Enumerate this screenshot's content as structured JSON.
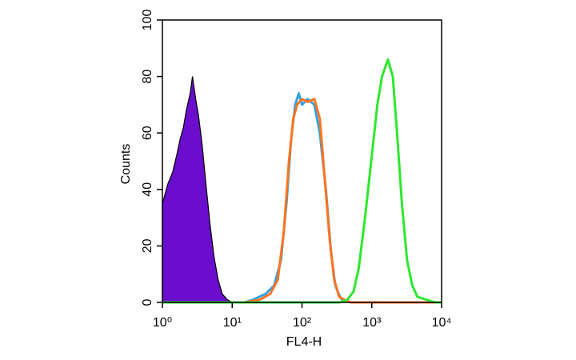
{
  "chart_data": {
    "type": "histogram-overlay",
    "xlabel": "FL4-H",
    "ylabel": "Counts",
    "xscale": "log",
    "xlim": [
      1,
      10000
    ],
    "ylim": [
      0,
      100
    ],
    "xticks": [
      {
        "value": 1,
        "label": "10⁰"
      },
      {
        "value": 10,
        "label": "10¹"
      },
      {
        "value": 100,
        "label": "10²"
      },
      {
        "value": 1000,
        "label": "10³"
      },
      {
        "value": 10000,
        "label": "10⁴"
      }
    ],
    "yticks": [
      0,
      20,
      40,
      60,
      80,
      100
    ],
    "series": [
      {
        "color": "#000000",
        "fill": "#6a0dcc",
        "x": [
          1,
          1.2,
          1.4,
          1.6,
          1.8,
          2.0,
          2.2,
          2.5,
          2.7,
          3.0,
          3.3,
          3.7,
          4.2,
          4.8,
          5.5,
          6.3,
          7.2,
          8.5,
          10
        ],
        "values": [
          35,
          42,
          46,
          52,
          58,
          62,
          68,
          74,
          80,
          72,
          66,
          56,
          42,
          28,
          16,
          8,
          3,
          1,
          0
        ]
      },
      {
        "color": "#2ea3e3",
        "x": [
          15,
          20,
          30,
          40,
          50,
          60,
          70,
          80,
          90,
          100,
          120,
          150,
          180,
          220,
          260,
          300,
          350,
          400
        ],
        "values": [
          0,
          1,
          3,
          6,
          15,
          35,
          58,
          70,
          74,
          70,
          72,
          70,
          60,
          40,
          18,
          6,
          2,
          0
        ]
      },
      {
        "color": "#ff7420",
        "x": [
          15,
          25,
          35,
          45,
          55,
          65,
          75,
          85,
          100,
          120,
          150,
          180,
          210,
          250,
          290,
          340,
          400,
          500,
          10000
        ],
        "values": [
          0,
          1,
          3,
          8,
          25,
          50,
          65,
          70,
          72,
          71,
          72,
          65,
          45,
          22,
          8,
          2,
          1,
          0,
          0
        ]
      },
      {
        "color": "#2ee82e",
        "x": [
          1,
          350,
          450,
          550,
          650,
          800,
          1000,
          1200,
          1400,
          1700,
          2000,
          2300,
          2700,
          3200,
          3800,
          4500,
          6000,
          8000,
          10000
        ],
        "values": [
          0,
          0,
          1,
          4,
          12,
          30,
          52,
          70,
          80,
          86,
          80,
          60,
          35,
          15,
          6,
          2,
          1,
          0,
          0
        ]
      }
    ]
  }
}
